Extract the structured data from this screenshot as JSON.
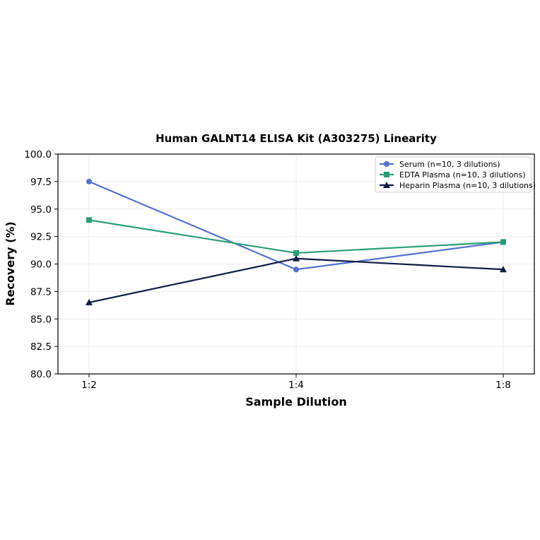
{
  "chart_data": {
    "type": "line",
    "title": "Human GALNT14 ELISA Kit (A303275) Linearity",
    "xlabel": "Sample Dilution",
    "ylabel": "Recovery (%)",
    "categories": [
      "1:2",
      "1:4",
      "1:8"
    ],
    "ylim": [
      80.0,
      100.0
    ],
    "yticks": [
      "80.0",
      "82.5",
      "85.0",
      "87.5",
      "90.0",
      "92.5",
      "95.0",
      "97.5",
      "100.0"
    ],
    "grid": true,
    "legend_position": "top-right",
    "series": [
      {
        "name": "Serum (n=10, 3 dilutions)",
        "values": [
          97.5,
          89.5,
          92.0
        ],
        "color": "#5470d6",
        "marker": "circle"
      },
      {
        "name": "EDTA Plasma (n=10, 3 dilutions)",
        "values": [
          94.0,
          91.0,
          92.0
        ],
        "color": "#2a9d78",
        "marker": "square"
      },
      {
        "name": "Heparin Plasma (n=10, 3 dilutions)",
        "values": [
          86.5,
          90.5,
          89.5
        ],
        "color": "#0f1d45",
        "marker": "triangle"
      }
    ]
  }
}
